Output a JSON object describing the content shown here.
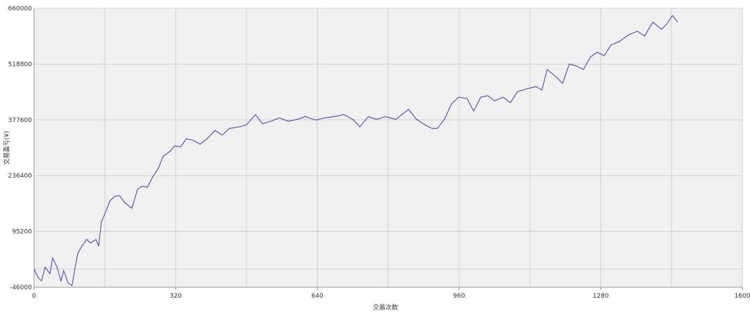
{
  "chart_data": {
    "type": "line",
    "xlabel": "交易次数",
    "ylabel": "交易盈亏(¥)",
    "xlim": [
      0,
      1600
    ],
    "ylim": [
      -46000,
      660000
    ],
    "xticks": [
      0,
      320,
      640,
      960,
      1280,
      1600
    ],
    "yticks": [
      -46000,
      95200,
      236400,
      377600,
      518800,
      660000
    ],
    "x_grid_lines": [
      160,
      480,
      800,
      1120,
      1440
    ],
    "y_grid_lines": [
      0
    ],
    "grid": true,
    "series": [
      {
        "color": "#5a58b4",
        "x": [
          0,
          9,
          17,
          25,
          36,
          42,
          52,
          61,
          67,
          77,
          86,
          93,
          99,
          108,
          119,
          127,
          140,
          146,
          152,
          162,
          171,
          182,
          193,
          205,
          221,
          234,
          245,
          256,
          268,
          281,
          292,
          307,
          318,
          331,
          344,
          359,
          375,
          391,
          409,
          425,
          441,
          464,
          480,
          500,
          516,
          535,
          554,
          574,
          595,
          613,
          637,
          657,
          679,
          700,
          720,
          736,
          755,
          774,
          794,
          817,
          846,
          864,
          883,
          899,
          911,
          927,
          943,
          959,
          978,
          993,
          1009,
          1025,
          1040,
          1060,
          1076,
          1092,
          1112,
          1134,
          1147,
          1159,
          1178,
          1194,
          1209,
          1225,
          1241,
          1257,
          1272,
          1288,
          1303,
          1322,
          1343,
          1363,
          1379,
          1398,
          1417,
          1429,
          1442,
          1454
        ],
        "values": [
          0,
          -21000,
          -30000,
          5000,
          -12000,
          28000,
          5000,
          -30000,
          -4000,
          -35000,
          -42000,
          5000,
          40000,
          58000,
          75000,
          66000,
          75000,
          58000,
          119000,
          145000,
          172000,
          184000,
          186000,
          168000,
          154000,
          203000,
          210000,
          207000,
          233000,
          256000,
          286000,
          298000,
          312000,
          309000,
          330000,
          326000,
          316000,
          330000,
          351000,
          339000,
          356000,
          360000,
          365000,
          391000,
          368000,
          374000,
          383000,
          374000,
          379000,
          386000,
          377000,
          383000,
          386000,
          391000,
          379000,
          360000,
          386000,
          379000,
          386000,
          379000,
          404000,
          379000,
          365000,
          356000,
          356000,
          379000,
          418000,
          435000,
          432000,
          400000,
          435000,
          439000,
          426000,
          435000,
          421000,
          449000,
          456000,
          462000,
          453000,
          505000,
          488000,
          470000,
          519000,
          514000,
          505000,
          537000,
          549000,
          540000,
          567000,
          576000,
          593000,
          602000,
          590000,
          625000,
          607000,
          620000,
          642000,
          625000
        ]
      }
    ]
  }
}
